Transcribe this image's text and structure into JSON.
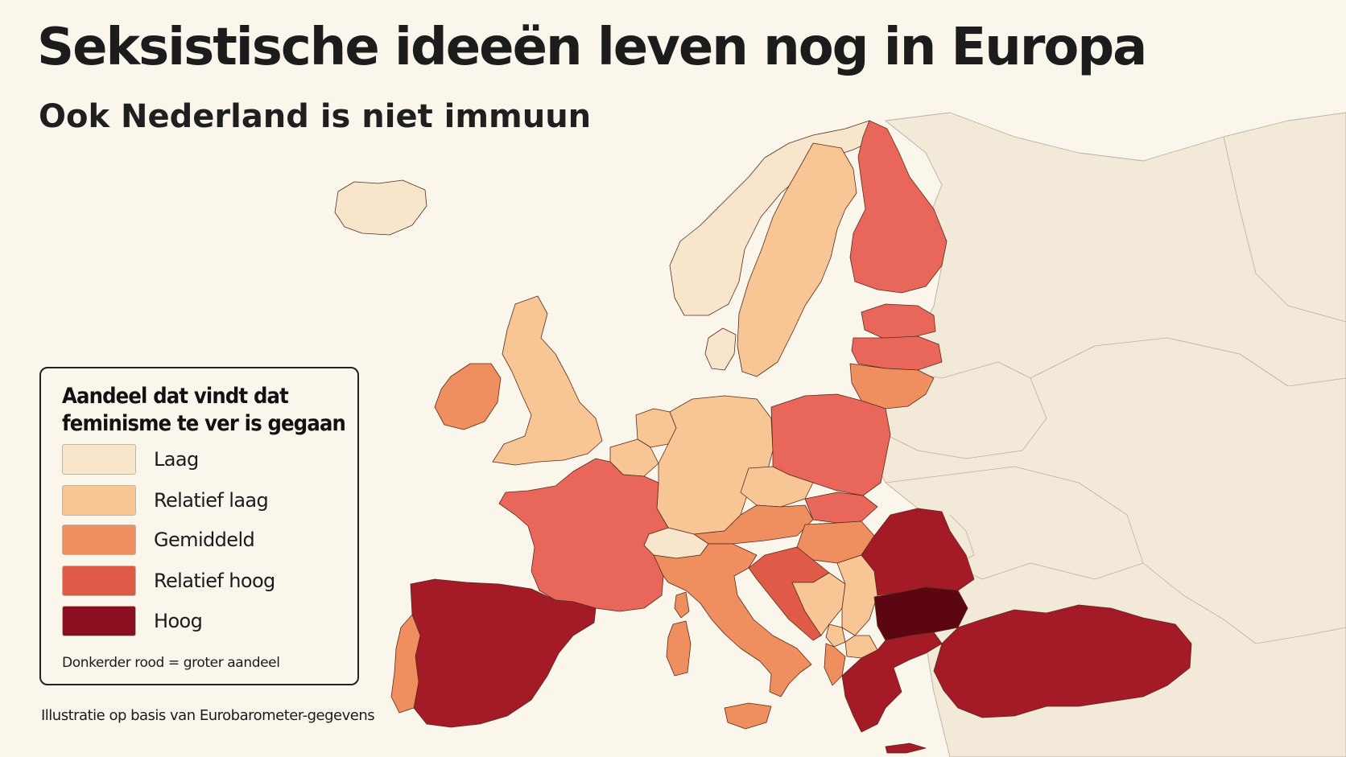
{
  "title": "Seksistische ideeën leven nog in Europa",
  "subtitle": "Ook Nederland is niet immuun",
  "legend": {
    "title_line1": "Aandeel dat vindt dat",
    "title_line2": "feminisme te ver is gegaan",
    "items": [
      {
        "label": "Laag",
        "color": "#f8e6cc"
      },
      {
        "label": "Relatief laag",
        "color": "#f8c595"
      },
      {
        "label": "Gemiddeld",
        "color": "#ef8e5e"
      },
      {
        "label": "Relatief hoog",
        "color": "#e05a48"
      },
      {
        "label": "Hoog",
        "color": "#8a0f1e"
      }
    ],
    "note": "Donkerder rood = groter aandeel"
  },
  "source": "Illustratie op basis van Eurobarometer-gegevens",
  "map": {
    "regions": [
      {
        "name": "norway",
        "level": "Laag"
      },
      {
        "name": "sweden",
        "level": "Relatief laag"
      },
      {
        "name": "finland",
        "level": "Relatief hoog"
      },
      {
        "name": "estonia",
        "level": "Relatief hoog"
      },
      {
        "name": "latvia",
        "level": "Relatief hoog"
      },
      {
        "name": "lithuania",
        "level": "Gemiddeld"
      },
      {
        "name": "denmark",
        "level": "Laag"
      },
      {
        "name": "united-kingdom",
        "level": "Relatief laag"
      },
      {
        "name": "ireland",
        "level": "Gemiddeld"
      },
      {
        "name": "netherlands",
        "level": "Relatief laag"
      },
      {
        "name": "belgium",
        "level": "Relatief laag"
      },
      {
        "name": "germany",
        "level": "Relatief laag"
      },
      {
        "name": "poland",
        "level": "Relatief hoog"
      },
      {
        "name": "france",
        "level": "Relatief hoog"
      },
      {
        "name": "switzerland",
        "level": "Laag"
      },
      {
        "name": "austria",
        "level": "Gemiddeld"
      },
      {
        "name": "czechia",
        "level": "Relatief laag"
      },
      {
        "name": "slovakia",
        "level": "Relatief hoog"
      },
      {
        "name": "hungary",
        "level": "Gemiddeld"
      },
      {
        "name": "italy",
        "level": "Gemiddeld"
      },
      {
        "name": "spain",
        "level": "Hoog"
      },
      {
        "name": "portugal",
        "level": "Gemiddeld"
      },
      {
        "name": "romania",
        "level": "Hoog"
      },
      {
        "name": "bulgaria",
        "level": "Hoog"
      },
      {
        "name": "greece",
        "level": "Hoog"
      },
      {
        "name": "turkey",
        "level": "Hoog"
      },
      {
        "name": "croatia",
        "level": "Relatief hoog"
      },
      {
        "name": "serbia",
        "level": "Relatief laag"
      },
      {
        "name": "iceland",
        "level": "Laag"
      }
    ]
  }
}
